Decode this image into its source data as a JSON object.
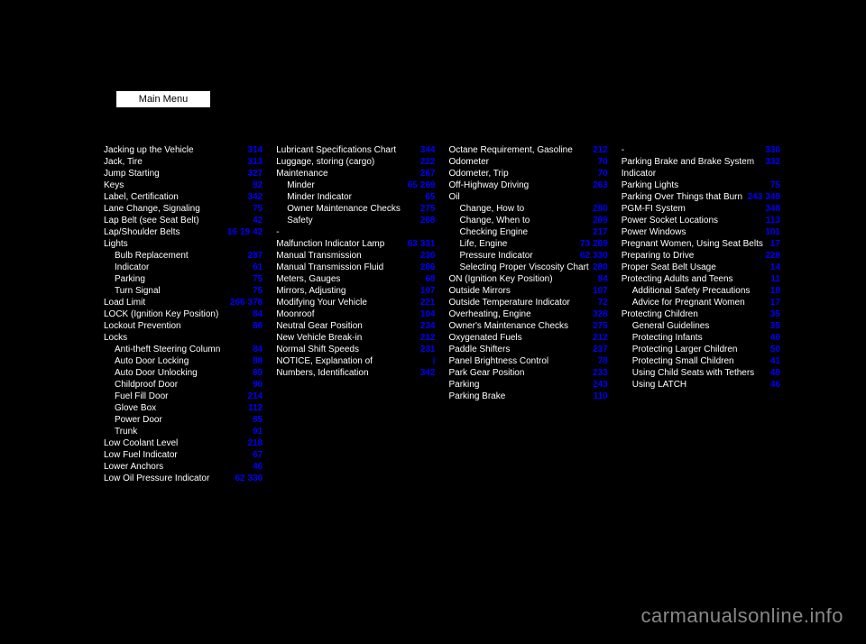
{
  "mainMenu": {
    "label": "Main Menu"
  },
  "columns": [
    {
      "entries": [
        {
          "label": "Jacking up the Vehicle",
          "pages": [
            "314"
          ],
          "indent": 0
        },
        {
          "label": "Jack, Tire",
          "pages": [
            "313"
          ],
          "indent": 0
        },
        {
          "label": "Jump Starting",
          "pages": [
            "327"
          ],
          "indent": 0
        },
        {
          "label": "Keys",
          "pages": [
            "82"
          ],
          "indent": 0
        },
        {
          "label": "Label, Certification",
          "pages": [
            "342"
          ],
          "indent": 0
        },
        {
          "label": "Lane Change, Signaling",
          "pages": [
            "75"
          ],
          "indent": 0
        },
        {
          "label": "Lap Belt (see Seat Belt)",
          "pages": [
            "42"
          ],
          "indent": 0
        },
        {
          "label": "Lap/Shoulder Belts",
          "pages": [
            "16",
            "19",
            "42"
          ],
          "indent": 0
        },
        {
          "label": "Lights",
          "pages": [],
          "indent": 0
        },
        {
          "label": "Bulb Replacement",
          "pages": [
            "287"
          ],
          "indent": 1
        },
        {
          "label": "Indicator",
          "pages": [
            "61"
          ],
          "indent": 1
        },
        {
          "label": "Parking",
          "pages": [
            "75"
          ],
          "indent": 1
        },
        {
          "label": "Turn Signal",
          "pages": [
            "75"
          ],
          "indent": 1
        },
        {
          "label": "Load Limit",
          "pages": [
            "266",
            "378"
          ],
          "indent": 0
        },
        {
          "label": "LOCK (Ignition Key Position)",
          "pages": [
            "84"
          ],
          "indent": 0
        },
        {
          "label": "Lockout Prevention",
          "pages": [
            "86"
          ],
          "indent": 0
        },
        {
          "label": "Locks",
          "pages": [],
          "indent": 0
        },
        {
          "label": "Anti-theft Steering Column",
          "pages": [
            "84"
          ],
          "indent": 1
        },
        {
          "label": "Auto Door Locking",
          "pages": [
            "88"
          ],
          "indent": 1
        },
        {
          "label": "Auto Door Unlocking",
          "pages": [
            "89"
          ],
          "indent": 1
        },
        {
          "label": "Childproof Door",
          "pages": [
            "90"
          ],
          "indent": 1
        },
        {
          "label": "Fuel Fill Door",
          "pages": [
            "214"
          ],
          "indent": 1
        },
        {
          "label": "Glove Box",
          "pages": [
            "112"
          ],
          "indent": 1
        },
        {
          "label": "Power Door",
          "pages": [
            "85"
          ],
          "indent": 1
        },
        {
          "label": "Trunk",
          "pages": [
            "91"
          ],
          "indent": 1
        },
        {
          "label": "Low Coolant Level",
          "pages": [
            "218"
          ],
          "indent": 0
        },
        {
          "label": "Low Fuel Indicator",
          "pages": [
            "67"
          ],
          "indent": 0
        },
        {
          "label": "Lower Anchors",
          "pages": [
            "46"
          ],
          "indent": 0
        },
        {
          "label": "Low Oil Pressure Indicator",
          "pages": [
            "62",
            "330"
          ],
          "indent": 0
        }
      ]
    },
    {
      "entries": [
        {
          "label": "Lubricant Specifications Chart",
          "pages": [
            "344"
          ],
          "indent": 0
        },
        {
          "label": "Luggage, storing (cargo)",
          "pages": [
            "222"
          ],
          "indent": 0
        },
        {
          "label": "Maintenance",
          "pages": [
            "267"
          ],
          "indent": 0
        },
        {
          "label": "Minder",
          "pages": [
            "65",
            "269"
          ],
          "indent": 1
        },
        {
          "label": "Minder Indicator",
          "pages": [
            "65"
          ],
          "indent": 1
        },
        {
          "label": "Owner Maintenance Checks",
          "pages": [
            "275"
          ],
          "indent": 1
        },
        {
          "label": "Safety",
          "pages": [
            "268"
          ],
          "indent": 1
        },
        {
          "label": "-",
          "pages": [],
          "indent": 0
        },
        {
          "label": "Malfunction Indicator Lamp",
          "pages": [
            "63",
            "331"
          ],
          "indent": 0
        },
        {
          "label": "Manual Transmission",
          "pages": [
            "230"
          ],
          "indent": 0
        },
        {
          "label": "Manual Transmission Fluid",
          "pages": [
            "286"
          ],
          "indent": 0
        },
        {
          "label": "Meters, Gauges",
          "pages": [
            "68"
          ],
          "indent": 0
        },
        {
          "label": "Mirrors, Adjusting",
          "pages": [
            "107"
          ],
          "indent": 0
        },
        {
          "label": "Modifying Your Vehicle",
          "pages": [
            "221"
          ],
          "indent": 0
        },
        {
          "label": "Moonroof",
          "pages": [
            "104"
          ],
          "indent": 0
        },
        {
          "label": "Neutral Gear Position",
          "pages": [
            "234"
          ],
          "indent": 0
        },
        {
          "label": "New Vehicle Break-in",
          "pages": [
            "212"
          ],
          "indent": 0
        },
        {
          "label": "Normal Shift Speeds",
          "pages": [
            "231"
          ],
          "indent": 0
        },
        {
          "label": "NOTICE, Explanation of",
          "pages": [
            "i"
          ],
          "indent": 0
        },
        {
          "label": "Numbers, Identification",
          "pages": [
            "342"
          ],
          "indent": 0
        }
      ]
    },
    {
      "entries": [
        {
          "label": "Octane Requirement, Gasoline",
          "pages": [
            "212"
          ],
          "indent": 0
        },
        {
          "label": "Odometer",
          "pages": [
            "70"
          ],
          "indent": 0
        },
        {
          "label": "Odometer, Trip",
          "pages": [
            "70"
          ],
          "indent": 0
        },
        {
          "label": "Off-Highway Driving",
          "pages": [
            "263"
          ],
          "indent": 0
        },
        {
          "label": "Oil",
          "pages": [],
          "indent": 0
        },
        {
          "label": "Change, How to",
          "pages": [
            "280"
          ],
          "indent": 1
        },
        {
          "label": "Change, When to",
          "pages": [
            "269"
          ],
          "indent": 1
        },
        {
          "label": "Checking Engine",
          "pages": [
            "217"
          ],
          "indent": 1
        },
        {
          "label": "Life, Engine",
          "pages": [
            "73",
            "269"
          ],
          "indent": 1
        },
        {
          "label": "Pressure Indicator",
          "pages": [
            "62",
            "330"
          ],
          "indent": 1
        },
        {
          "label": "Selecting Proper Viscosity Chart",
          "pages": [
            "280"
          ],
          "indent": 1
        },
        {
          "label": "ON (Ignition Key Position)",
          "pages": [
            "84"
          ],
          "indent": 0
        },
        {
          "label": "Outside Mirrors",
          "pages": [
            "107"
          ],
          "indent": 0
        },
        {
          "label": "Outside Temperature Indicator",
          "pages": [
            "72"
          ],
          "indent": 0
        },
        {
          "label": "Overheating, Engine",
          "pages": [
            "328"
          ],
          "indent": 0
        },
        {
          "label": "Owner's Maintenance Checks",
          "pages": [
            "275"
          ],
          "indent": 0
        },
        {
          "label": "Oxygenated Fuels",
          "pages": [
            "212"
          ],
          "indent": 0
        },
        {
          "label": "Paddle Shifters",
          "pages": [
            "237"
          ],
          "indent": 0
        },
        {
          "label": "Panel Brightness Control",
          "pages": [
            "78"
          ],
          "indent": 0
        },
        {
          "label": "Park Gear Position",
          "pages": [
            "233"
          ],
          "indent": 0
        },
        {
          "label": "Parking",
          "pages": [
            "243"
          ],
          "indent": 0
        },
        {
          "label": "Parking Brake",
          "pages": [
            "110"
          ],
          "indent": 0
        }
      ]
    },
    {
      "entries": [
        {
          "label": "-",
          "pages": [
            "330"
          ],
          "indent": 0
        },
        {
          "label": "Parking Brake and Brake System Indicator",
          "pages": [
            "332"
          ],
          "indent": 0
        },
        {
          "label": "Parking Lights",
          "pages": [
            "75"
          ],
          "indent": 0
        },
        {
          "label": "Parking Over Things that Burn",
          "pages": [
            "243",
            "349"
          ],
          "indent": 0
        },
        {
          "label": "PGM-FI System",
          "pages": [
            "348"
          ],
          "indent": 0
        },
        {
          "label": "Power Socket Locations",
          "pages": [
            "113"
          ],
          "indent": 0
        },
        {
          "label": "Power Windows",
          "pages": [
            "101"
          ],
          "indent": 0
        },
        {
          "label": "Pregnant Women, Using Seat Belts",
          "pages": [
            "17"
          ],
          "indent": 0
        },
        {
          "label": "Preparing to Drive",
          "pages": [
            "228"
          ],
          "indent": 0
        },
        {
          "label": "Proper Seat Belt Usage",
          "pages": [
            "14"
          ],
          "indent": 0
        },
        {
          "label": "Protecting Adults and Teens",
          "pages": [
            "11"
          ],
          "indent": 0
        },
        {
          "label": "Additional Safety Precautions",
          "pages": [
            "18"
          ],
          "indent": 1
        },
        {
          "label": "Advice for Pregnant Women",
          "pages": [
            "17"
          ],
          "indent": 1
        },
        {
          "label": "Protecting Children",
          "pages": [
            "35"
          ],
          "indent": 0
        },
        {
          "label": "General Guidelines",
          "pages": [
            "35"
          ],
          "indent": 1
        },
        {
          "label": "Protecting Infants",
          "pages": [
            "40"
          ],
          "indent": 1
        },
        {
          "label": "Protecting Larger Children",
          "pages": [
            "50"
          ],
          "indent": 1
        },
        {
          "label": "Protecting Small Children",
          "pages": [
            "41"
          ],
          "indent": 1
        },
        {
          "label": "Using Child Seats with Tethers",
          "pages": [
            "48"
          ],
          "indent": 1
        },
        {
          "label": "Using LATCH",
          "pages": [
            "46"
          ],
          "indent": 1
        }
      ]
    }
  ],
  "watermark": "carmanualsonline.info"
}
